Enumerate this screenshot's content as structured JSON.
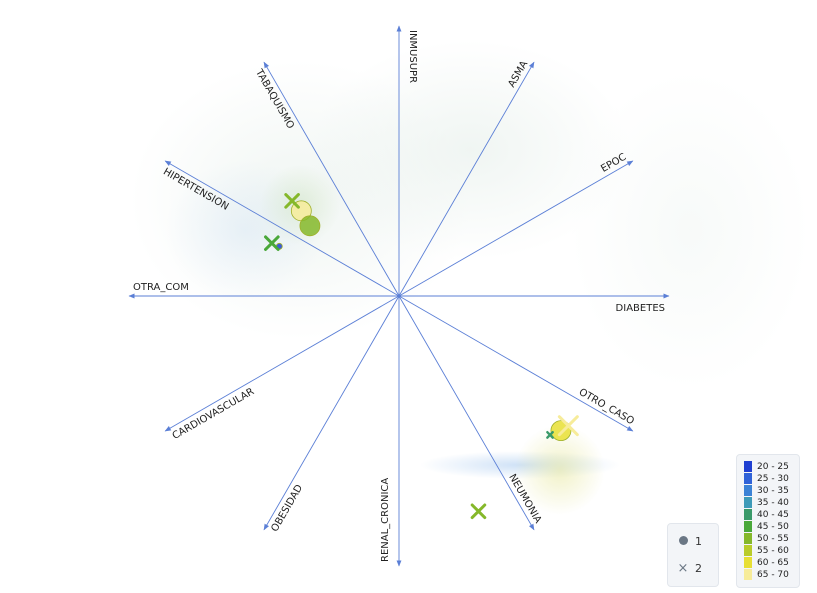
{
  "chart_data": {
    "type": "scatter",
    "subtype": "radial-axes projection",
    "axes": [
      {
        "name": "INMUSUPR",
        "color": "#5b7fd6"
      },
      {
        "name": "ASMA",
        "color": "#5b7fd6"
      },
      {
        "name": "EPOC",
        "color": "#5b7fd6"
      },
      {
        "name": "DIABETES",
        "color": "#5b7fd6"
      },
      {
        "name": "OTRO_CASO",
        "color": "#5b7fd6"
      },
      {
        "name": "NEUMONIA",
        "color": "#5b7fd6"
      },
      {
        "name": "RENAL_CRONICA",
        "color": "#5b7fd6"
      },
      {
        "name": "OBESIDAD",
        "color": "#5b7fd6"
      },
      {
        "name": "CARDIOVASCULAR",
        "color": "#5b7fd6"
      },
      {
        "name": "OTRA_COM",
        "color": "#5b7fd6"
      },
      {
        "name": "HIPERTENSION",
        "color": "#5b7fd6"
      },
      {
        "name": "TABAQUISMO",
        "color": "#5b7fd6"
      }
    ],
    "shape_legend": [
      {
        "shape": "circle",
        "label": "1"
      },
      {
        "shape": "cross",
        "label": "2"
      }
    ],
    "color_bins": [
      {
        "label": "20 - 25",
        "color": "#1f3fd1"
      },
      {
        "label": "25 - 30",
        "color": "#2f62d8"
      },
      {
        "label": "30 - 35",
        "color": "#3b82d6"
      },
      {
        "label": "35 - 40",
        "color": "#3d9ab8"
      },
      {
        "label": "40 - 45",
        "color": "#3a9a6a"
      },
      {
        "label": "45 - 50",
        "color": "#4aa83a"
      },
      {
        "label": "50 - 55",
        "color": "#85b82a"
      },
      {
        "label": "55 - 60",
        "color": "#b9cc2a"
      },
      {
        "label": "60 - 65",
        "color": "#e7df34"
      },
      {
        "label": "65 - 70",
        "color": "#f7ec9a"
      }
    ],
    "points": [
      {
        "group": "1",
        "axis": "HIPERTENSION",
        "r": 0.48,
        "angle_offset": -0.13,
        "bin": "20 - 25",
        "size": 1
      },
      {
        "group": "2",
        "axis": "HIPERTENSION",
        "r": 0.51,
        "angle_offset": -0.13,
        "bin": "45 - 50",
        "size": 2
      },
      {
        "group": "1",
        "axis": "TABAQUISMO",
        "r": 0.48,
        "angle_offset": -0.33,
        "bin": "65 - 70",
        "size": 3
      },
      {
        "group": "2",
        "axis": "TABAQUISMO",
        "r": 0.53,
        "angle_offset": -0.32,
        "bin": "50 - 55",
        "size": 2
      },
      {
        "group": "1",
        "axis": "TABAQUISMO",
        "r": 0.42,
        "angle_offset": -0.38,
        "bin": "50 - 55",
        "size": 3
      },
      {
        "group": "1",
        "axis": "OTRO_CASO",
        "r": 0.78,
        "angle_offset": 0.17,
        "bin": "60 - 65",
        "size": 3
      },
      {
        "group": "2",
        "axis": "OTRO_CASO",
        "r": 0.79,
        "angle_offset": 0.13,
        "bin": "65 - 70",
        "size": 3
      },
      {
        "group": "2",
        "axis": "NEUMONIA",
        "r": 0.85,
        "angle_offset": 0.17,
        "bin": "50 - 55",
        "size": 2
      },
      {
        "group": "2",
        "axis": "OTRO_CASO",
        "r": 0.76,
        "angle_offset": 0.22,
        "bin": "40 - 45",
        "size": 1
      }
    ]
  }
}
